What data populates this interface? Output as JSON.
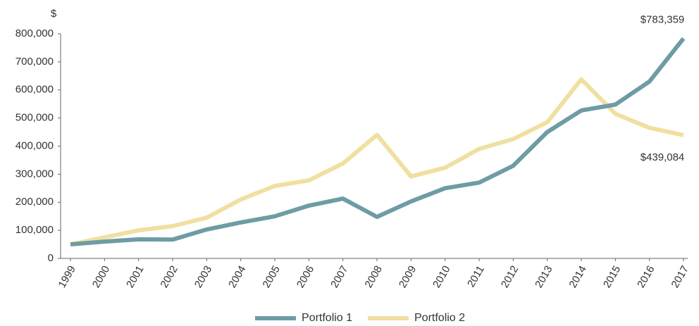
{
  "chart_data": {
    "type": "line",
    "y_unit": "$",
    "categories": [
      "1999",
      "2000",
      "2001",
      "2002",
      "2003",
      "2004",
      "2005",
      "2006",
      "2007",
      "2008",
      "2009",
      "2010",
      "2011",
      "2012",
      "2013",
      "2014",
      "2015",
      "2016",
      "2017"
    ],
    "series": [
      {
        "name": "Portfolio 1",
        "color": "#6e9ca5",
        "values": [
          50000,
          60000,
          68000,
          67000,
          103000,
          128000,
          150000,
          188000,
          213000,
          148000,
          203000,
          250000,
          270000,
          330000,
          450000,
          527000,
          548000,
          630000,
          783359
        ],
        "value_labels": [
          null,
          null,
          null,
          null,
          null,
          null,
          null,
          null,
          null,
          null,
          null,
          null,
          null,
          null,
          null,
          null,
          null,
          null,
          "$783,359"
        ]
      },
      {
        "name": "Portfolio 2",
        "color": "#f0e0a0",
        "values": [
          50000,
          75000,
          100000,
          115000,
          145000,
          210000,
          258000,
          278000,
          338000,
          440000,
          292000,
          323000,
          390000,
          425000,
          485000,
          638000,
          515000,
          465000,
          439084
        ],
        "value_labels": [
          null,
          null,
          null,
          null,
          null,
          null,
          null,
          null,
          null,
          null,
          null,
          null,
          null,
          null,
          null,
          null,
          null,
          null,
          "$439,084"
        ]
      }
    ],
    "ylim": [
      0,
      800000
    ],
    "yticks": [
      0,
      {
        "value": 100000,
        "label": "100,000"
      },
      {
        "value": 200000,
        "label": "200,000"
      },
      {
        "value": 300000,
        "label": "300,000"
      },
      {
        "value": 400000,
        "label": "400,000"
      },
      {
        "value": 500000,
        "label": "500,000"
      },
      {
        "value": 600000,
        "label": "600,000"
      },
      {
        "value": 700000,
        "label": "700,000"
      },
      {
        "value": 800000,
        "label": "800,000"
      }
    ],
    "legend": "bottom"
  }
}
